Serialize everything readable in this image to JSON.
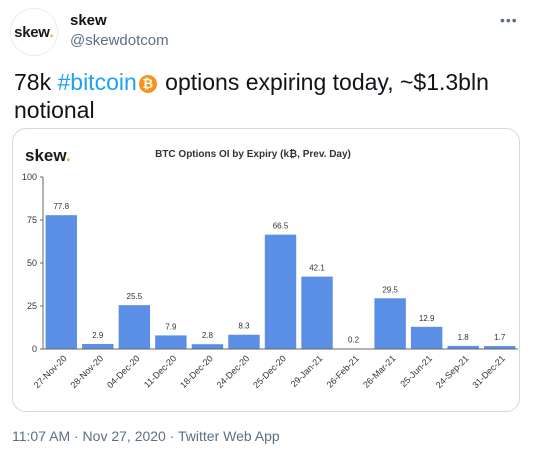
{
  "tweet": {
    "avatar_text": "skew",
    "avatar_dot": ".",
    "name": "skew",
    "handle": "@skewdotcom",
    "more_icon": "more-icon",
    "text_before": "78k ",
    "hashtag": "#bitcoin",
    "btc_symbol": "₿",
    "text_after": " options expiring today, ~$1.3bln notional",
    "timestamp": "11:07 AM · Nov 27, 2020 · Twitter Web App"
  },
  "colors": {
    "bar": "#5b8fe6",
    "accent_dot": "#f5a623",
    "link": "#1da1f2",
    "btc": "#f7931a"
  },
  "chart_data": {
    "type": "bar",
    "brand": "skew",
    "brand_dot": ".",
    "title": "BTC Options OI by Expiry (k₿, Prev. Day)",
    "categories": [
      "27-Nov-20",
      "28-Nov-20",
      "04-Dec-20",
      "11-Dec-20",
      "18-Dec-20",
      "24-Dec-20",
      "25-Dec-20",
      "29-Jan-21",
      "26-Feb-21",
      "26-Mar-21",
      "25-Jun-21",
      "24-Sep-21",
      "31-Dec-21"
    ],
    "values": [
      77.8,
      2.9,
      25.5,
      7.9,
      2.8,
      8.3,
      66.5,
      42.1,
      0.2,
      29.5,
      12.9,
      1.8,
      1.7
    ],
    "value_labels": [
      "77.8",
      "2.9",
      "25.5",
      "7.9",
      "2.8",
      "8.3",
      "66.5",
      "42.1",
      "0.2",
      "29.5",
      "12.9",
      "1.8",
      "1.7"
    ],
    "yticks": [
      "0",
      "25",
      "50",
      "75",
      "100"
    ],
    "ylim": [
      0,
      100
    ],
    "grid": false,
    "legend": "none"
  }
}
